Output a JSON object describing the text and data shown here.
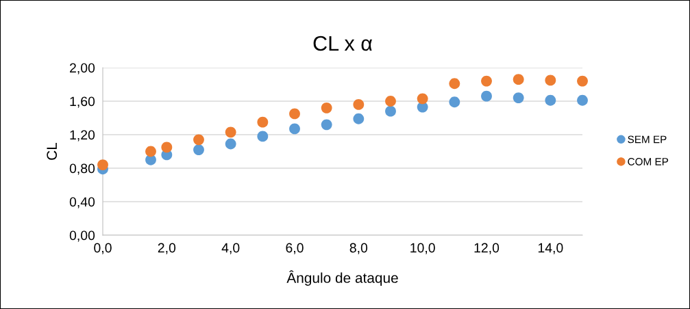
{
  "chart_data": {
    "type": "scatter",
    "title": "CL x α",
    "xlabel": "Ângulo de ataque",
    "ylabel": "CL",
    "x": [
      0,
      1.5,
      2,
      3,
      4,
      5,
      6,
      7,
      8,
      9,
      10,
      11,
      12,
      13,
      14,
      15
    ],
    "series": [
      {
        "name": "SEM EP",
        "color": "#5b9bd5",
        "values": [
          0.79,
          0.9,
          0.96,
          1.02,
          1.09,
          1.18,
          1.27,
          1.32,
          1.39,
          1.48,
          1.53,
          1.59,
          1.66,
          1.64,
          1.61,
          1.61
        ]
      },
      {
        "name": "COM EP",
        "color": "#ed7d31",
        "values": [
          0.84,
          1.0,
          1.05,
          1.14,
          1.23,
          1.35,
          1.45,
          1.52,
          1.56,
          1.6,
          1.63,
          1.81,
          1.84,
          1.86,
          1.85,
          1.84
        ]
      }
    ],
    "xlim": [
      0,
      15
    ],
    "ylim": [
      0,
      2
    ],
    "xticks": [
      {
        "value": 0,
        "label": "0,0"
      },
      {
        "value": 2,
        "label": "2,0"
      },
      {
        "value": 4,
        "label": "4,0"
      },
      {
        "value": 6,
        "label": "6,0"
      },
      {
        "value": 8,
        "label": "8,0"
      },
      {
        "value": 10,
        "label": "10,0"
      },
      {
        "value": 12,
        "label": "12,0"
      },
      {
        "value": 14,
        "label": "14,0"
      }
    ],
    "yticks": [
      {
        "value": 0,
        "label": "0,00"
      },
      {
        "value": 0.4,
        "label": "0,40"
      },
      {
        "value": 0.8,
        "label": "0,80"
      },
      {
        "value": 1.2,
        "label": "1,20"
      },
      {
        "value": 1.6,
        "label": "1,60"
      },
      {
        "value": 2,
        "label": "2,00"
      }
    ],
    "grid": "y",
    "legend": "right",
    "marker": "circle"
  }
}
